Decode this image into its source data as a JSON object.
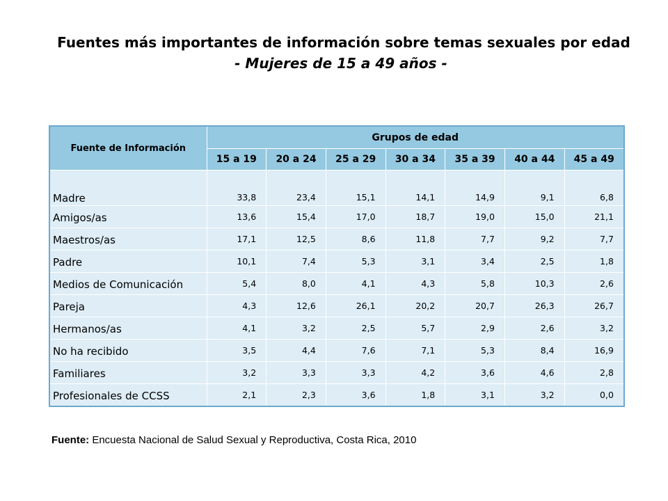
{
  "title": "Fuentes más importantes de información sobre temas sexuales por edad",
  "subtitle": "- Mujeres de 15 a 49 años -",
  "table": {
    "row_header": "Fuente de Información",
    "group_header": "Grupos de edad"
  },
  "footnote": {
    "label": "Fuente:",
    "text": " Encuesta Nacional de Salud Sexual y Reproductiva, Costa Rica, 2010"
  },
  "colors": {
    "header_bg": "#95c9e1",
    "row_bg": "#deedf6",
    "border": "#6ea7cf"
  },
  "chart_data": {
    "type": "table",
    "title": "Fuentes más importantes de información sobre temas sexuales por edad",
    "subtitle": "- Mujeres de 15 a 49 años -",
    "columns": [
      "15 a 19",
      "20 a 24",
      "25 a 29",
      "30 a 34",
      "35 a 39",
      "40 a 44",
      "45 a 49"
    ],
    "rows": [
      {
        "label": "Madre",
        "values": [
          "33,8",
          "23,4",
          "15,1",
          "14,1",
          "14,9",
          "9,1",
          "6,8"
        ]
      },
      {
        "label": "Amigos/as",
        "values": [
          "13,6",
          "15,4",
          "17,0",
          "18,7",
          "19,0",
          "15,0",
          "21,1"
        ]
      },
      {
        "label": "Maestros/as",
        "values": [
          "17,1",
          "12,5",
          "8,6",
          "11,8",
          "7,7",
          "9,2",
          "7,7"
        ]
      },
      {
        "label": "Padre",
        "values": [
          "10,1",
          "7,4",
          "5,3",
          "3,1",
          "3,4",
          "2,5",
          "1,8"
        ]
      },
      {
        "label": "Medios de Comunicación",
        "values": [
          "5,4",
          "8,0",
          "4,1",
          "4,3",
          "5,8",
          "10,3",
          "2,6"
        ]
      },
      {
        "label": "Pareja",
        "values": [
          "4,3",
          "12,6",
          "26,1",
          "20,2",
          "20,7",
          "26,3",
          "26,7"
        ]
      },
      {
        "label": "Hermanos/as",
        "values": [
          "4,1",
          "3,2",
          "2,5",
          "5,7",
          "2,9",
          "2,6",
          "3,2"
        ]
      },
      {
        "label": "No ha recibido",
        "values": [
          "3,5",
          "4,4",
          "7,6",
          "7,1",
          "5,3",
          "8,4",
          "16,9"
        ]
      },
      {
        "label": "Familiares",
        "values": [
          "3,2",
          "3,3",
          "3,3",
          "4,2",
          "3,6",
          "4,6",
          "2,8"
        ]
      },
      {
        "label": "Profesionales  de CCSS",
        "values": [
          "2,1",
          "2,3",
          "3,6",
          "1,8",
          "3,1",
          "3,2",
          "0,0"
        ]
      }
    ]
  }
}
